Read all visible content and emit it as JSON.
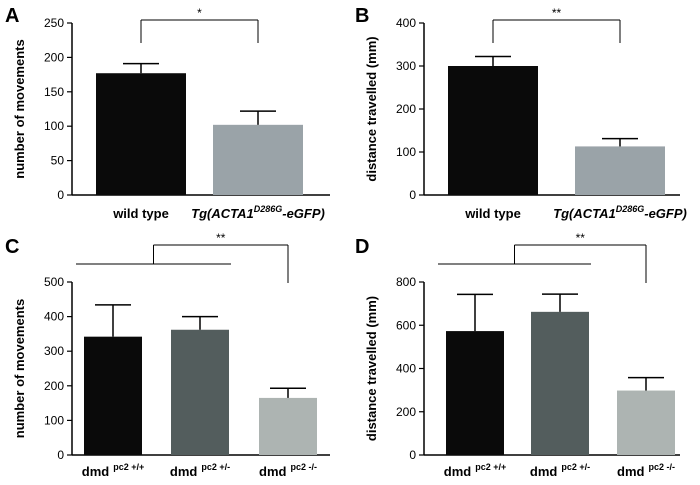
{
  "chart_data": [
    {
      "type": "bar",
      "panel": "A",
      "categories": [
        "wild type",
        "Tg(ACTA1 D286G -eGFP)"
      ],
      "category_parts": [
        {
          "main": "wild type",
          "sup": "",
          "suffix": "",
          "italic": false
        },
        {
          "main": "Tg(ACTA1",
          "sup": "D286G",
          "suffix": "-eGFP)",
          "italic": true
        }
      ],
      "values": [
        177,
        102
      ],
      "errors": [
        14,
        20
      ],
      "colors": [
        "#0a0a0a",
        "#9aa3a8"
      ],
      "ylabel": "number of movements",
      "ylim": [
        0,
        250
      ],
      "yticks": [
        0,
        50,
        100,
        150,
        200,
        250
      ],
      "significance": {
        "label": "*",
        "from": [
          0
        ],
        "to": 1
      }
    },
    {
      "type": "bar",
      "panel": "B",
      "categories": [
        "wild type",
        "Tg(ACTA1 D286G -eGFP)"
      ],
      "category_parts": [
        {
          "main": "wild type",
          "sup": "",
          "suffix": "",
          "italic": false
        },
        {
          "main": "Tg(ACTA1",
          "sup": "D286G",
          "suffix": "-eGFP)",
          "italic": true
        }
      ],
      "values": [
        300,
        113
      ],
      "errors": [
        22,
        18
      ],
      "colors": [
        "#0a0a0a",
        "#9aa3a8"
      ],
      "ylabel": "distance travelled (mm)",
      "ylim": [
        0,
        400
      ],
      "yticks": [
        0,
        100,
        200,
        300,
        400
      ],
      "significance": {
        "label": "**",
        "from": [
          0
        ],
        "to": 1
      }
    },
    {
      "type": "bar",
      "panel": "C",
      "categories": [
        "dmd pc2 +/+",
        "dmd pc2 +/-",
        "dmd pc2 -/-"
      ],
      "category_parts": [
        {
          "main": "dmd",
          "sup": "pc2 +/+",
          "suffix": "",
          "italic": false
        },
        {
          "main": "dmd",
          "sup": "pc2 +/-",
          "suffix": "",
          "italic": false
        },
        {
          "main": "dmd",
          "sup": "pc2 -/-",
          "suffix": "",
          "italic": false
        }
      ],
      "values": [
        342,
        362,
        165
      ],
      "errors": [
        92,
        38,
        28
      ],
      "colors": [
        "#0a0a0a",
        "#535d5d",
        "#adb4b2"
      ],
      "ylabel": "number of movements",
      "ylim": [
        0,
        500
      ],
      "yticks": [
        0,
        100,
        200,
        300,
        400,
        500
      ],
      "significance": {
        "label": "**",
        "from": [
          0,
          1
        ],
        "to": 2
      }
    },
    {
      "type": "bar",
      "panel": "D",
      "categories": [
        "dmd pc2 +/+",
        "dmd pc2 +/-",
        "dmd pc2 -/-"
      ],
      "category_parts": [
        {
          "main": "dmd",
          "sup": "pc2 +/+",
          "suffix": "",
          "italic": false
        },
        {
          "main": "dmd",
          "sup": "pc2 +/-",
          "suffix": "",
          "italic": false
        },
        {
          "main": "dmd",
          "sup": "pc2 -/-",
          "suffix": "",
          "italic": false
        }
      ],
      "values": [
        573,
        662,
        298
      ],
      "errors": [
        170,
        82,
        60
      ],
      "colors": [
        "#0a0a0a",
        "#535d5d",
        "#adb4b2"
      ],
      "ylabel": "distance travelled (mm)",
      "ylim": [
        0,
        800
      ],
      "yticks": [
        0,
        200,
        400,
        600,
        800
      ],
      "significance": {
        "label": "**",
        "from": [
          0,
          1
        ],
        "to": 2
      }
    }
  ]
}
